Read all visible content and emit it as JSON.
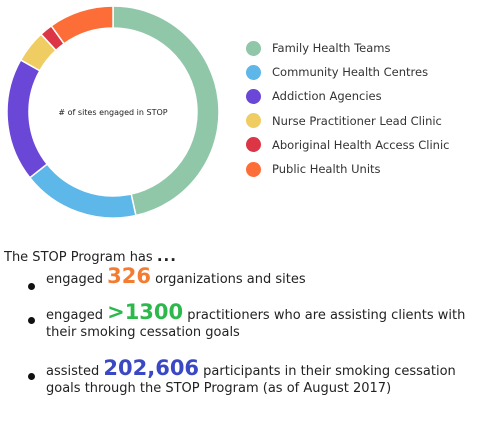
{
  "chart_data": {
    "type": "pie",
    "center_label": "# of sites engaged in STOP",
    "series": [
      {
        "name": "Family Health Teams",
        "value": 47,
        "color": "#8fc7a8"
      },
      {
        "name": "Community Health Centres",
        "value": 18,
        "color": "#5db7e8"
      },
      {
        "name": "Addiction Agencies",
        "value": 19,
        "color": "#6a47d6"
      },
      {
        "name": "Nurse Practitioner Lead Clinic",
        "value": 5,
        "color": "#f0cd62"
      },
      {
        "name": "Aboriginal Health Access Clinic",
        "value": 2,
        "color": "#dc3545"
      },
      {
        "name": "Public Health Units",
        "value": 10,
        "color": "#fd6d37"
      }
    ],
    "legend_position": "right"
  },
  "summary": {
    "intro": "The STOP Program has",
    "intro_dots": "...",
    "items": [
      {
        "prefix": "engaged ",
        "number": "326",
        "suffix": " organizations and sites"
      },
      {
        "prefix": "engaged ",
        "number": ">1300",
        "suffix": " practitioners who are assisting clients with their smoking cessation goals"
      },
      {
        "prefix": "assisted ",
        "number": "202,606",
        "suffix": " participants in their smoking cessation goals through the STOP Program (as of August 2017)"
      }
    ]
  }
}
